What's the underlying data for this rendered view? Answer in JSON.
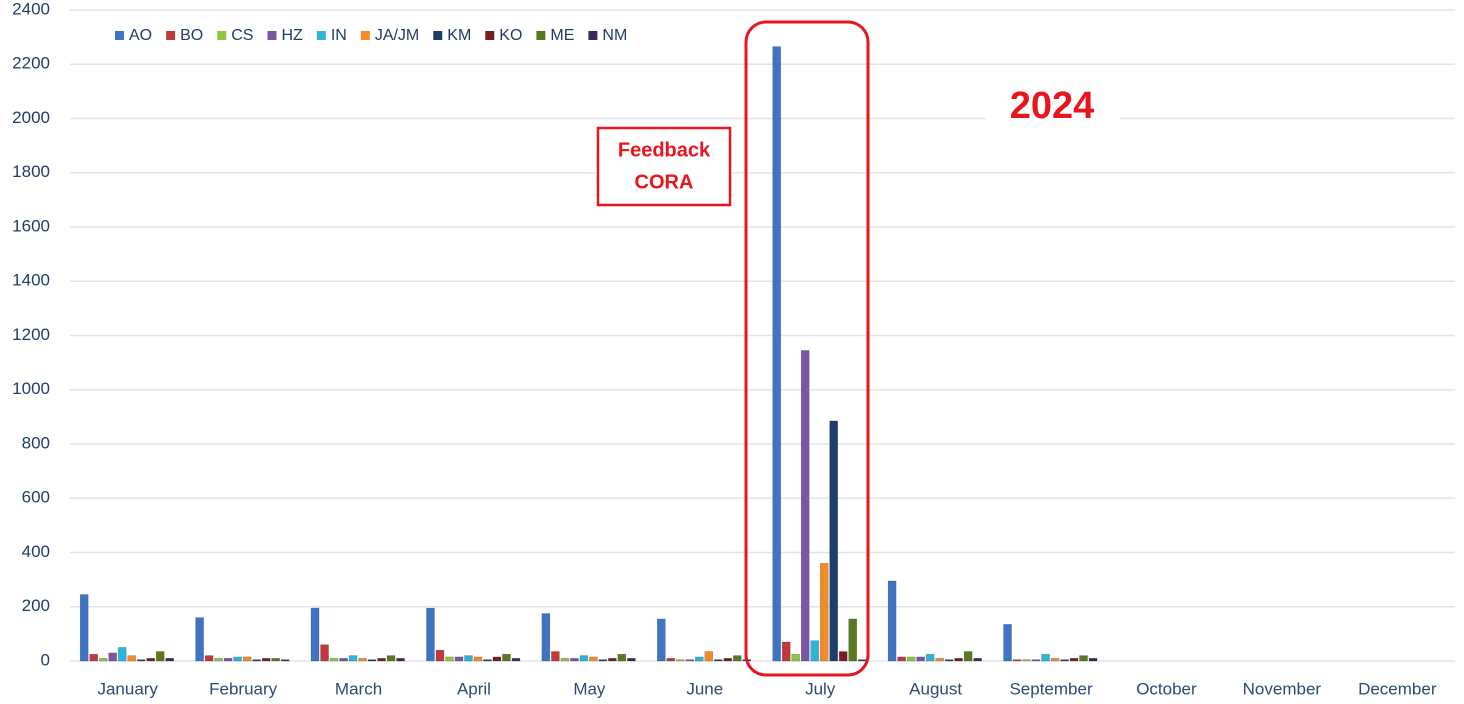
{
  "chart_data": {
    "type": "bar",
    "categories": [
      "January",
      "February",
      "March",
      "April",
      "May",
      "June",
      "July",
      "August",
      "September",
      "October",
      "November",
      "December"
    ],
    "series": [
      {
        "name": "AO",
        "color": "#3f74c4",
        "values": [
          245,
          160,
          195,
          195,
          175,
          155,
          2265,
          295,
          135,
          null,
          null,
          null
        ]
      },
      {
        "name": "BO",
        "color": "#c0393b",
        "values": [
          25,
          20,
          60,
          40,
          35,
          10,
          70,
          15,
          5,
          null,
          null,
          null
        ]
      },
      {
        "name": "CS",
        "color": "#8dc63f",
        "values": [
          10,
          10,
          10,
          15,
          10,
          5,
          25,
          15,
          5,
          null,
          null,
          null
        ]
      },
      {
        "name": "HZ",
        "color": "#7d55a8",
        "values": [
          30,
          10,
          10,
          15,
          10,
          5,
          1145,
          15,
          5,
          null,
          null,
          null
        ]
      },
      {
        "name": "IN",
        "color": "#2fb4d6",
        "values": [
          50,
          15,
          20,
          20,
          20,
          15,
          75,
          25,
          25,
          null,
          null,
          null
        ]
      },
      {
        "name": "JA/JM",
        "color": "#f28c28",
        "values": [
          20,
          15,
          10,
          15,
          15,
          35,
          360,
          10,
          10,
          null,
          null,
          null
        ]
      },
      {
        "name": "KM",
        "color": "#1f3d6b",
        "values": [
          5,
          5,
          5,
          5,
          5,
          5,
          885,
          5,
          5,
          null,
          null,
          null
        ]
      },
      {
        "name": "KO",
        "color": "#7a1f1f",
        "values": [
          10,
          10,
          10,
          15,
          10,
          10,
          35,
          10,
          10,
          null,
          null,
          null
        ]
      },
      {
        "name": "ME",
        "color": "#5b7a1f",
        "values": [
          35,
          10,
          20,
          25,
          25,
          20,
          155,
          35,
          20,
          null,
          null,
          null
        ]
      },
      {
        "name": "NM",
        "color": "#3d2a5a",
        "values": [
          10,
          5,
          10,
          10,
          10,
          5,
          5,
          10,
          10,
          null,
          null,
          null
        ]
      }
    ],
    "ylim": [
      0,
      2400
    ],
    "yticks": [
      0,
      200,
      400,
      600,
      800,
      1000,
      1200,
      1400,
      1600,
      1800,
      2000,
      2200,
      2400
    ],
    "grid": true,
    "legend": "top-left",
    "annotations": {
      "year": "2024",
      "box": [
        "Feedback",
        "CORA"
      ]
    }
  }
}
